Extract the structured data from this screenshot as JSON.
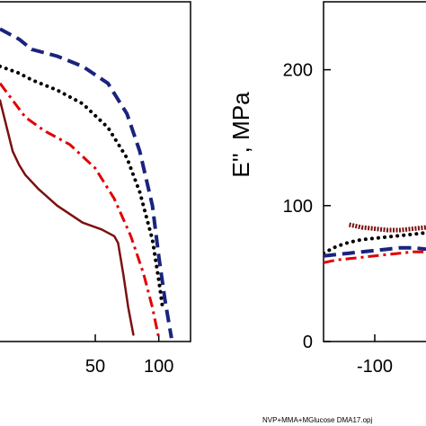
{
  "chart_data": [
    {
      "type": "line",
      "xlabel": "",
      "ylabel": "",
      "x_ticks": [
        "50",
        "100"
      ],
      "xlim": [
        -25,
        125
      ],
      "ylim": [
        0,
        100
      ],
      "grid": false,
      "series": [
        {
          "color": "#1a237e",
          "dash": "dashed",
          "x": [
            -25,
            -10,
            0,
            20,
            40,
            60,
            75,
            85,
            95,
            100,
            105,
            110
          ],
          "y": [
            92,
            89,
            86,
            84,
            81,
            76,
            67,
            56,
            40,
            25,
            12,
            1
          ]
        },
        {
          "color": "#000000",
          "dash": "dotted",
          "x": [
            -25,
            -10,
            0,
            20,
            40,
            60,
            75,
            85,
            95,
            100,
            103
          ],
          "y": [
            81,
            79,
            77,
            74,
            70,
            63,
            54,
            44,
            30,
            18,
            10
          ]
        },
        {
          "color": "#e00000",
          "dash": "dashdot",
          "x": [
            -25,
            -15,
            -5,
            10,
            30,
            50,
            65,
            78,
            88,
            95,
            100
          ],
          "y": [
            76,
            71,
            66,
            62,
            58,
            51,
            42,
            31,
            20,
            10,
            1
          ]
        },
        {
          "color": "#7b1010",
          "dash": "solid",
          "x": [
            -25,
            -15,
            -10,
            -5,
            5,
            20,
            40,
            55,
            65,
            68,
            72,
            76,
            80
          ],
          "y": [
            71,
            56,
            52,
            49,
            45,
            40,
            35,
            33,
            31,
            29,
            20,
            10,
            2
          ]
        }
      ]
    },
    {
      "type": "line",
      "xlabel": "",
      "ylabel": "E'', MPa",
      "x_ticks": [
        "-100"
      ],
      "y_ticks": [
        "0",
        "100",
        "200"
      ],
      "xlim": [
        -140,
        -60
      ],
      "ylim": [
        0,
        250
      ],
      "grid": false,
      "series": [
        {
          "color": "#7b1010",
          "dash": "solid-dotted",
          "x": [
            -120,
            -110,
            -100,
            -90,
            -80,
            -70,
            -60
          ],
          "y": [
            86,
            84,
            83,
            82,
            82,
            83,
            84
          ]
        },
        {
          "color": "#000000",
          "dash": "dotted",
          "x": [
            -140,
            -130,
            -120,
            -110,
            -100,
            -90,
            -80,
            -70,
            -60
          ],
          "y": [
            65,
            70,
            73,
            75,
            76,
            77,
            78,
            79,
            80
          ]
        },
        {
          "color": "#1a237e",
          "dash": "dashed",
          "x": [
            -140,
            -130,
            -120,
            -110,
            -100,
            -90,
            -80,
            -70,
            -60
          ],
          "y": [
            63,
            64,
            65,
            66,
            67,
            68,
            69,
            69,
            68
          ]
        },
        {
          "color": "#e00000",
          "dash": "dashdot",
          "x": [
            -140,
            -130,
            -120,
            -110,
            -100,
            -90,
            -80,
            -70,
            -60
          ],
          "y": [
            58,
            60,
            61,
            62,
            63,
            64,
            65,
            66,
            66
          ]
        }
      ]
    }
  ],
  "footer": {
    "filename": "NVP+MMA+MGlucose DMA17.opj"
  }
}
